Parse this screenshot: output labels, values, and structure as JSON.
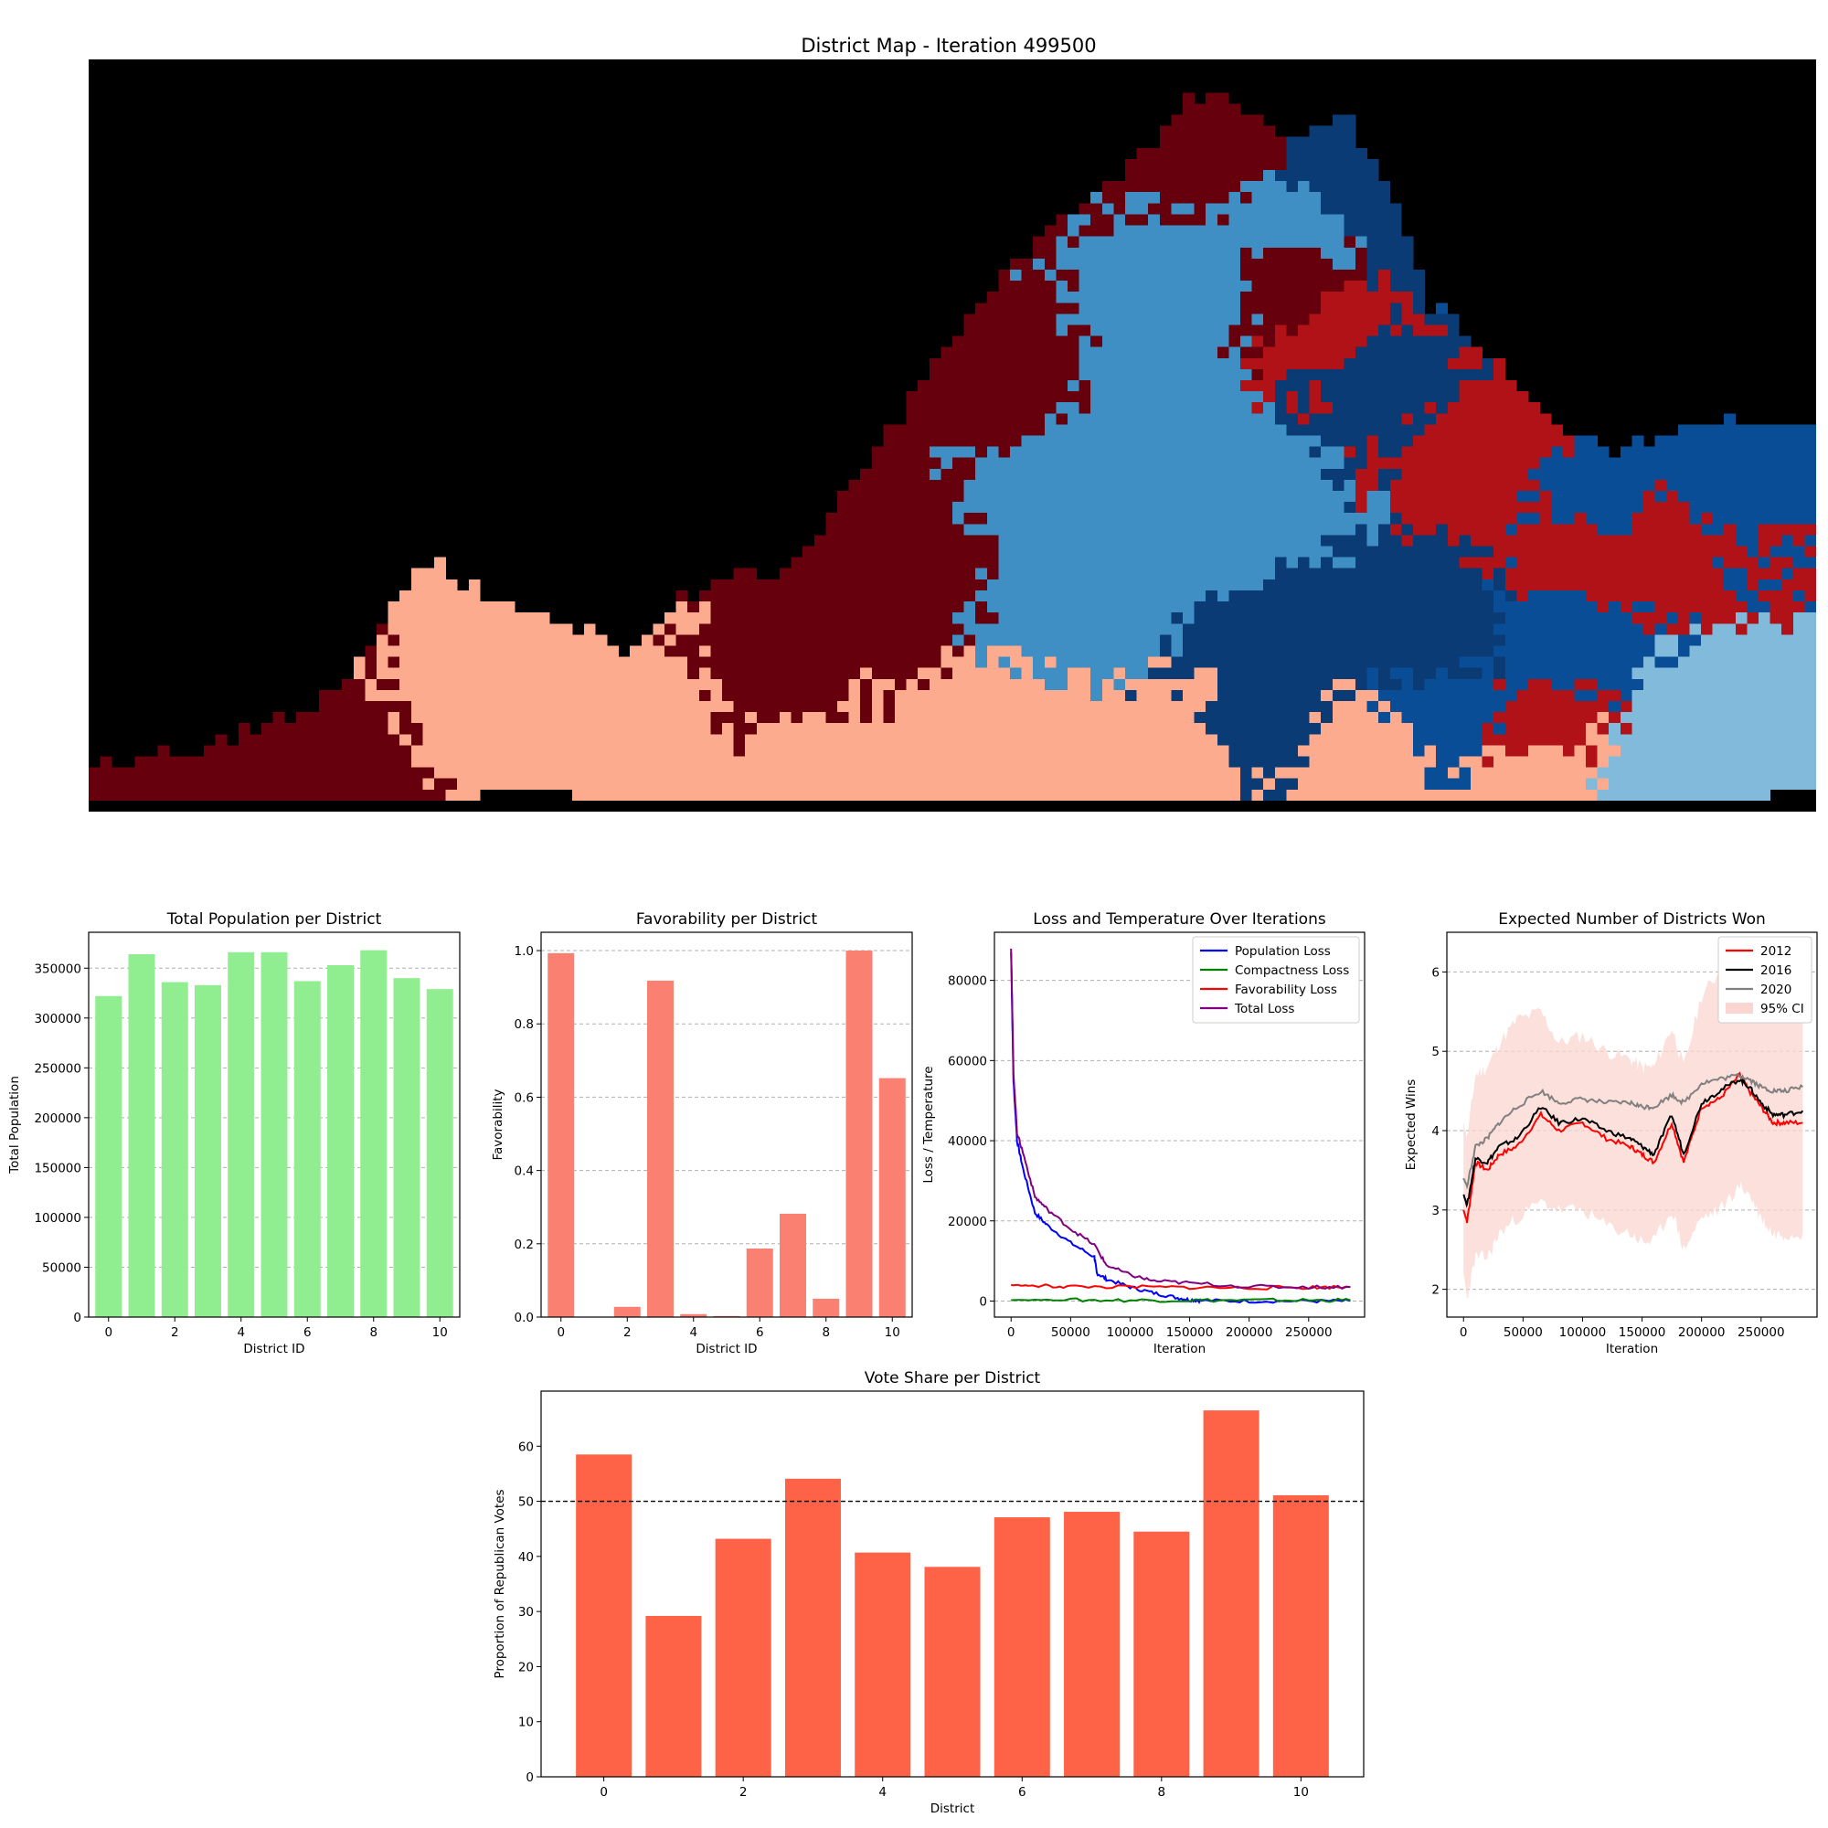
{
  "map": {
    "title": "District Map - Iteration 499500",
    "colors": [
      "#000000",
      "#67000d",
      "#fcab8f",
      "#0b3b75",
      "#084d96",
      "#3f8fc5",
      "#b11218",
      "#82badb"
    ]
  },
  "chart_data": [
    {
      "id": "pop",
      "type": "bar",
      "title": "Total Population per District",
      "xlabel": "District ID",
      "ylabel": "Total Population",
      "categories": [
        0,
        1,
        2,
        3,
        4,
        5,
        6,
        7,
        8,
        9,
        10
      ],
      "values": [
        322000,
        364000,
        336000,
        333000,
        366000,
        366000,
        337000,
        353000,
        368000,
        340000,
        329000
      ],
      "ylim": [
        0,
        386000
      ],
      "yticks": [
        0,
        50000,
        100000,
        150000,
        200000,
        250000,
        300000,
        350000
      ],
      "xticks": [
        0,
        2,
        4,
        6,
        8,
        10
      ],
      "xlim": [
        -0.6,
        10.6
      ],
      "color": "#90ee90",
      "grid": "y"
    },
    {
      "id": "fav",
      "type": "bar",
      "title": "Favorability per District",
      "xlabel": "District ID",
      "ylabel": "Favorability",
      "categories": [
        0,
        1,
        2,
        3,
        4,
        5,
        6,
        7,
        8,
        9,
        10
      ],
      "values": [
        0.993,
        0.0,
        0.028,
        0.918,
        0.008,
        0.003,
        0.187,
        0.282,
        0.05,
        1.0,
        0.652
      ],
      "ylim": [
        0,
        1.05
      ],
      "yticks": [
        "0.0",
        "0.2",
        "0.4",
        "0.6",
        "0.8",
        "1.0"
      ],
      "xticks": [
        0,
        2,
        4,
        6,
        8,
        10
      ],
      "xlim": [
        -0.6,
        10.6
      ],
      "color": "#fa8072",
      "grid": "y"
    },
    {
      "id": "loss",
      "type": "line",
      "title": "Loss and Temperature Over Iterations",
      "xlabel": "Iteration",
      "ylabel": "Loss / Temperature",
      "xlim": [
        -14000,
        297000
      ],
      "ylim": [
        -4000,
        92000
      ],
      "xticks": [
        0,
        50000,
        100000,
        150000,
        200000,
        250000
      ],
      "yticks": [
        0,
        20000,
        40000,
        60000,
        80000
      ],
      "grid": "y",
      "legend": "top-right",
      "series": [
        {
          "name": "Population Loss",
          "color": "#0000ff",
          "x": [
            0,
            2000,
            5000,
            10000,
            20000,
            30000,
            50000,
            70000,
            72000,
            80000,
            100000,
            120000,
            140000,
            150000,
            160000,
            200000,
            250000,
            285000
          ],
          "y": [
            87000,
            55000,
            40000,
            33000,
            22000,
            19000,
            14500,
            11000,
            7000,
            5500,
            3500,
            2000,
            800,
            300,
            100,
            0,
            0,
            0
          ]
        },
        {
          "name": "Compactness Loss",
          "color": "#008000",
          "x": [
            0,
            50000,
            100000,
            150000,
            200000,
            250000,
            285000
          ],
          "y": [
            300,
            250,
            200,
            200,
            200,
            200,
            200
          ]
        },
        {
          "name": "Favorability Loss",
          "color": "#ff0000",
          "x": [
            0,
            20000,
            50000,
            100000,
            150000,
            200000,
            250000,
            285000
          ],
          "y": [
            4000,
            3800,
            3600,
            3500,
            3400,
            3300,
            3400,
            3500
          ]
        },
        {
          "name": "Total Loss",
          "color": "#800080",
          "x": [
            0,
            2000,
            5000,
            10000,
            20000,
            30000,
            50000,
            70000,
            80000,
            100000,
            120000,
            150000,
            200000,
            250000,
            285000
          ],
          "y": [
            88000,
            57000,
            42000,
            37000,
            26000,
            23000,
            18000,
            14000,
            9000,
            6500,
            5000,
            4500,
            3600,
            3500,
            3500
          ]
        }
      ]
    },
    {
      "id": "wins",
      "type": "line",
      "title": "Expected Number of Districts Won",
      "xlabel": "Iteration",
      "ylabel": "Expected Wins",
      "xlim": [
        -14000,
        297000
      ],
      "ylim": [
        1.65,
        6.5
      ],
      "xticks": [
        0,
        50000,
        100000,
        150000,
        200000,
        250000
      ],
      "yticks": [
        2,
        3,
        4,
        5,
        6
      ],
      "grid": "y",
      "legend": "top-right",
      "series": [
        {
          "name": "2012",
          "color": "#ff0000",
          "x": [
            0,
            3000,
            10000,
            20000,
            30000,
            45000,
            65000,
            80000,
            100000,
            120000,
            140000,
            150000,
            160000,
            175000,
            185000,
            200000,
            215000,
            232000,
            240000,
            250000,
            260000,
            270000,
            285000
          ],
          "y": [
            3.0,
            2.85,
            3.6,
            3.5,
            3.7,
            3.8,
            4.2,
            4.0,
            4.1,
            3.9,
            3.8,
            3.7,
            3.6,
            4.1,
            3.6,
            4.3,
            4.4,
            4.7,
            4.5,
            4.3,
            4.1,
            4.1,
            4.1
          ]
        },
        {
          "name": "2016",
          "color": "#000000",
          "x": [
            0,
            3000,
            10000,
            20000,
            30000,
            45000,
            65000,
            80000,
            100000,
            120000,
            140000,
            150000,
            160000,
            175000,
            185000,
            200000,
            215000,
            232000,
            240000,
            250000,
            260000,
            270000,
            285000
          ],
          "y": [
            3.2,
            3.05,
            3.65,
            3.6,
            3.8,
            3.9,
            4.3,
            4.1,
            4.15,
            4.0,
            3.9,
            3.8,
            3.7,
            4.2,
            3.7,
            4.35,
            4.5,
            4.65,
            4.55,
            4.35,
            4.2,
            4.2,
            4.25
          ]
        },
        {
          "name": "2020",
          "color": "#808080",
          "x": [
            0,
            3000,
            10000,
            20000,
            30000,
            45000,
            65000,
            80000,
            100000,
            120000,
            140000,
            150000,
            160000,
            175000,
            185000,
            200000,
            215000,
            232000,
            240000,
            250000,
            260000,
            270000,
            285000
          ],
          "y": [
            3.4,
            3.3,
            3.8,
            3.9,
            4.1,
            4.3,
            4.5,
            4.35,
            4.4,
            4.35,
            4.35,
            4.3,
            4.3,
            4.45,
            4.35,
            4.6,
            4.65,
            4.7,
            4.65,
            4.55,
            4.5,
            4.5,
            4.55
          ]
        }
      ],
      "band": {
        "name": "95% CI",
        "color": "#fbd5d0",
        "x": [
          0,
          3000,
          10000,
          20000,
          30000,
          45000,
          65000,
          80000,
          100000,
          120000,
          140000,
          150000,
          160000,
          175000,
          185000,
          200000,
          215000,
          232000,
          240000,
          250000,
          260000,
          270000,
          285000
        ],
        "lower": [
          2.2,
          1.9,
          2.4,
          2.4,
          2.7,
          2.9,
          3.1,
          3.0,
          3.0,
          2.8,
          2.7,
          2.6,
          2.6,
          3.0,
          2.5,
          2.9,
          3.0,
          3.3,
          3.2,
          2.9,
          2.7,
          2.7,
          2.7
        ],
        "upper": [
          4.1,
          3.9,
          4.7,
          4.8,
          5.1,
          5.4,
          5.5,
          5.1,
          5.2,
          5.0,
          4.9,
          4.8,
          4.8,
          5.3,
          4.8,
          5.7,
          6.0,
          6.1,
          5.8,
          5.6,
          5.4,
          5.5,
          5.6
        ]
      }
    },
    {
      "id": "vote",
      "type": "bar",
      "title": "Vote Share per District",
      "xlabel": "District",
      "ylabel": "Proportion of Republican Votes",
      "categories": [
        0,
        1,
        2,
        3,
        4,
        5,
        6,
        7,
        8,
        9,
        10
      ],
      "values": [
        58.5,
        29.2,
        43.2,
        54.1,
        40.7,
        38.1,
        47.1,
        48.1,
        44.5,
        66.5,
        51.1
      ],
      "ylim": [
        0,
        70
      ],
      "yticks": [
        0,
        10,
        20,
        30,
        40,
        50,
        60
      ],
      "xticks": [
        0,
        2,
        4,
        6,
        8,
        10
      ],
      "xlim": [
        -0.9,
        10.9
      ],
      "color": "#ff6347",
      "refline": 50
    }
  ]
}
